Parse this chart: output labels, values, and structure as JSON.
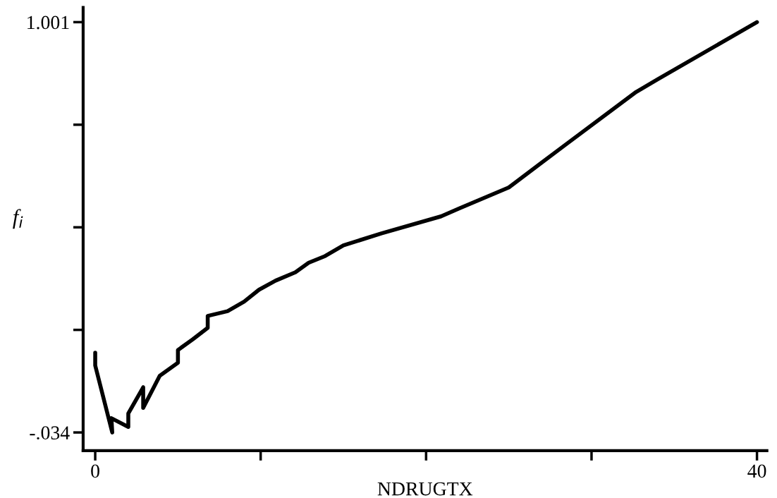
{
  "chart_data": {
    "type": "line",
    "xlabel": "NDRUGTX",
    "ylabel": "f$_{i}$",
    "x": [
      0,
      0,
      1.03,
      0.98,
      2.0,
      2.0,
      2.9,
      2.9,
      3.9,
      5.0,
      5.0,
      5.9,
      6.8,
      6.8,
      8.0,
      9.0,
      9.9,
      10.9,
      12.1,
      12.9,
      13.9,
      15.0,
      17.3,
      20.9,
      22.0,
      25.0,
      28.4,
      32.7,
      34.0,
      40
    ],
    "series": [
      {
        "color": "#000000",
        "values": [
          0.167,
          0.135,
          -0.034,
          0.002,
          -0.02,
          0.014,
          0.08,
          0.028,
          0.109,
          0.142,
          0.174,
          0.201,
          0.23,
          0.26,
          0.272,
          0.296,
          0.326,
          0.349,
          0.37,
          0.394,
          0.411,
          0.438,
          0.468,
          0.511,
          0.531,
          0.584,
          0.691,
          0.825,
          0.857,
          1.001
        ]
      }
    ],
    "xlim": [
      -0.73,
      40.6
    ],
    "ylim": [
      -0.08,
      1.038
    ],
    "xticks": [
      0,
      {
        "value": 10,
        "label": null
      },
      {
        "value": 20,
        "label": null
      },
      {
        "value": 30,
        "label": null
      },
      40
    ],
    "yticks": [
      {
        "value": -0.034,
        "label": "-.034"
      },
      {
        "value": 0.22475,
        "label": null
      },
      {
        "value": 0.4835,
        "label": null
      },
      {
        "value": 0.74225,
        "label": null
      },
      1.001
    ],
    "grid": false,
    "legend": false,
    "marker": "none",
    "line_style": "solid"
  }
}
